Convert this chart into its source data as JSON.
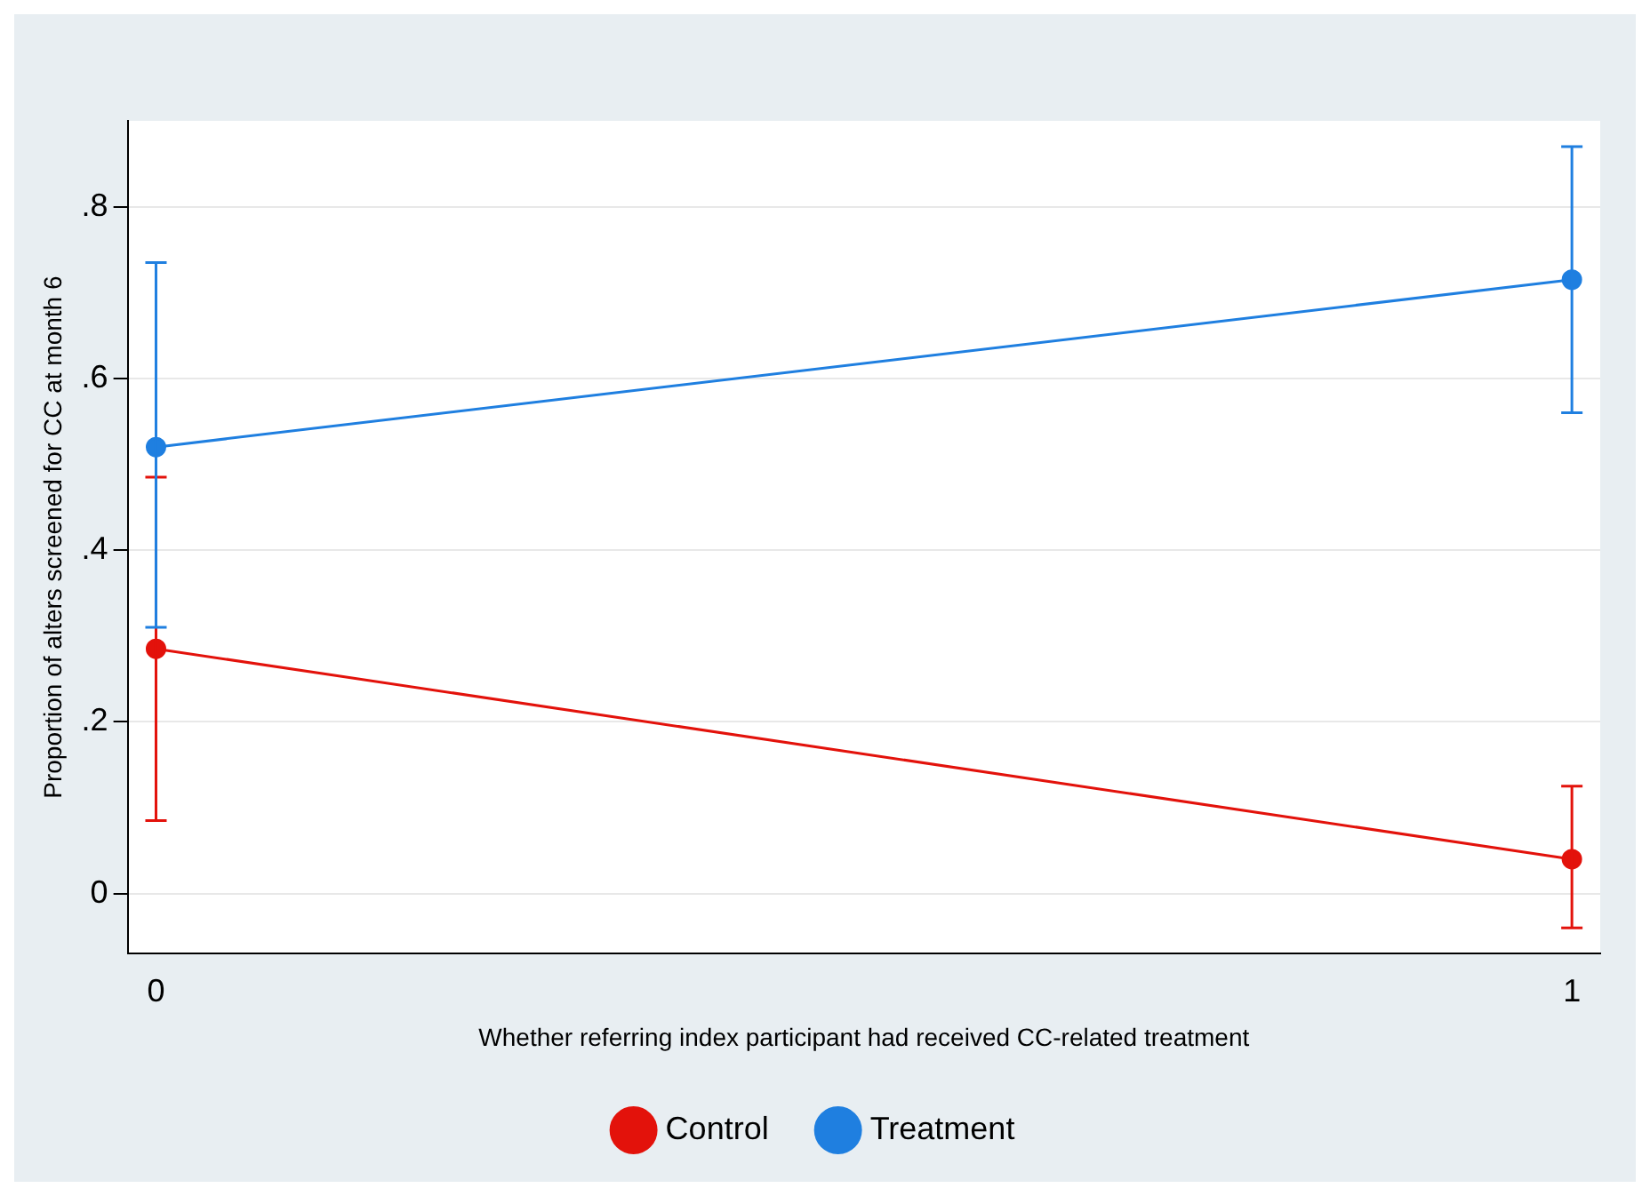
{
  "chart_data": {
    "type": "line",
    "xlabel": "Whether referring index participant had received CC-related treatment",
    "ylabel": "Proportion of alters screened for CC at month 6",
    "x": [
      0,
      1
    ],
    "xlim": [
      -0.02,
      1.02
    ],
    "xticks": [
      0,
      1
    ],
    "ylim": [
      -0.07,
      0.9
    ],
    "yticks": [
      0,
      {
        "value": 0.2,
        "label": ".2"
      },
      {
        "value": 0.4,
        "label": ".4"
      },
      {
        "value": 0.6,
        "label": ".6"
      },
      {
        "value": 0.8,
        "label": ".8"
      }
    ],
    "series": [
      {
        "name": "Control",
        "color": "#e3120b",
        "values": [
          0.285,
          0.04
        ],
        "errors": [
          [
            0.085,
            0.485
          ],
          [
            -0.04,
            0.125
          ]
        ]
      },
      {
        "name": "Treatment",
        "color": "#1f7fe0",
        "values": [
          0.52,
          0.715
        ],
        "errors": [
          [
            0.31,
            0.735
          ],
          [
            0.56,
            0.87
          ]
        ]
      }
    ],
    "grid": "y",
    "legend": "bottom",
    "marker": "circle",
    "line_style": "solid"
  }
}
